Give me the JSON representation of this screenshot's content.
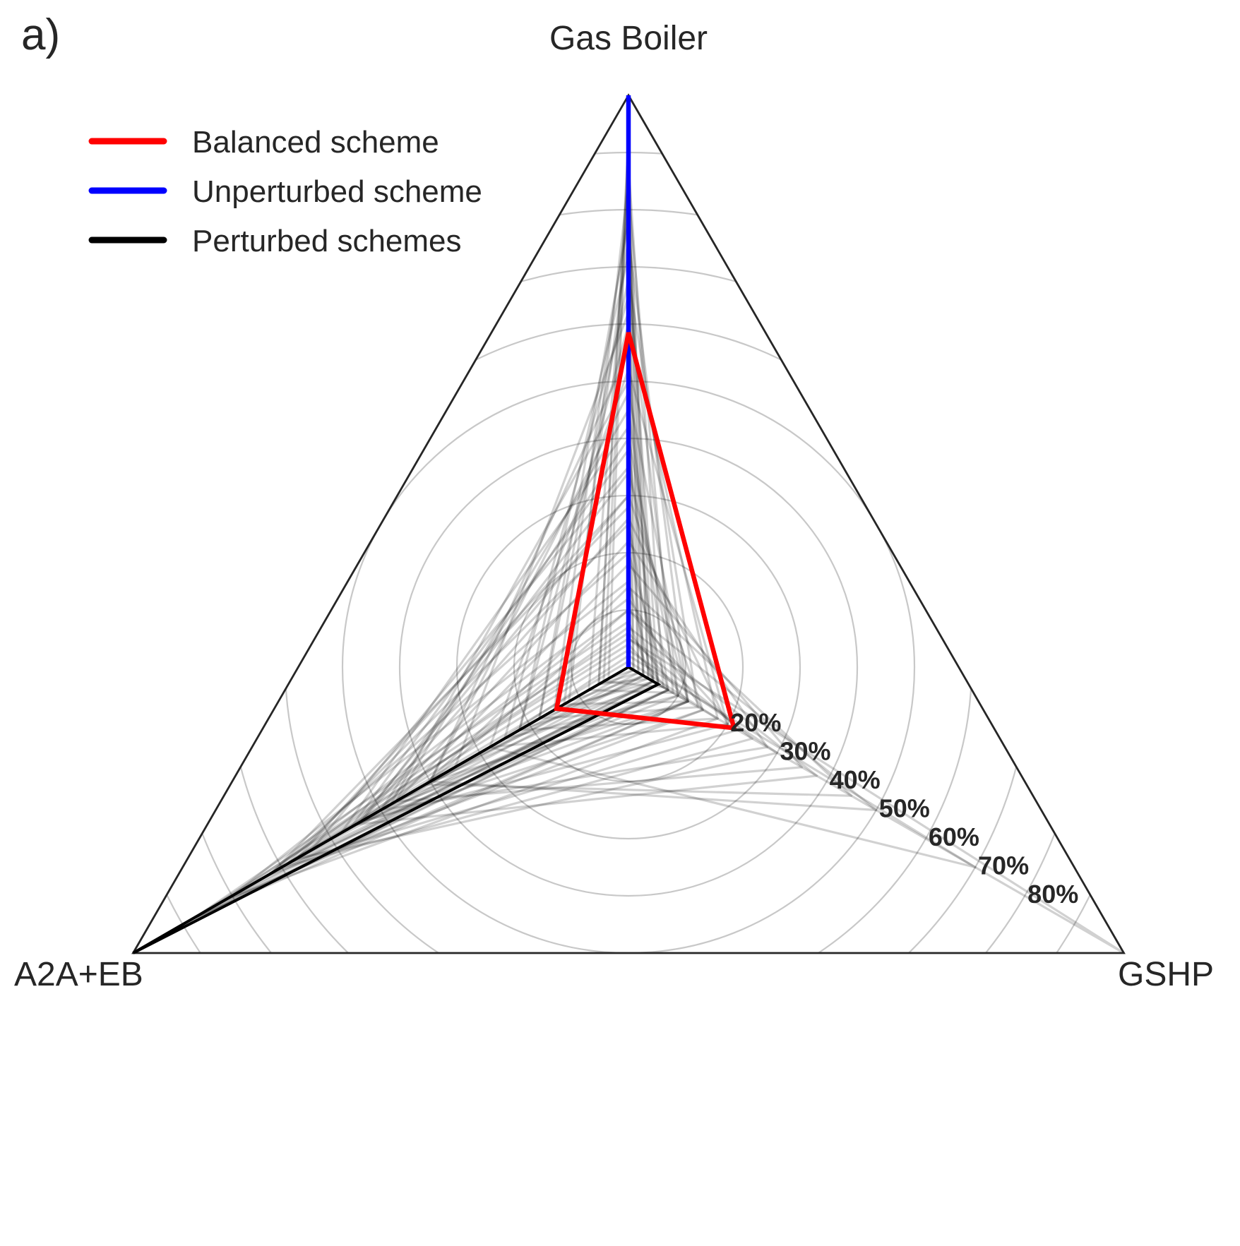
{
  "panel_label": "a)",
  "chart_data": {
    "type": "radar",
    "axes": [
      "Gas Boiler",
      "GSHP",
      "A2A+EB"
    ],
    "radial_max": 100,
    "radial_tick_labels": [
      "20%",
      "30%",
      "40%",
      "50%",
      "60%",
      "70%",
      "80%"
    ],
    "radial_ticks": [
      20,
      30,
      40,
      50,
      60,
      70,
      80
    ],
    "grid_circles": [
      10,
      20,
      30,
      40,
      50,
      60,
      70,
      80,
      90
    ],
    "legend": {
      "placement": "upper-left",
      "entries": [
        {
          "label": "Balanced scheme",
          "color": "#ff0000"
        },
        {
          "label": "Unperturbed scheme",
          "color": "#0000ff"
        },
        {
          "label": "Perturbed schemes",
          "color": "#000000"
        }
      ]
    },
    "series": [
      {
        "name": "Balanced scheme",
        "color": "#ff0000",
        "values": [
          58.5,
          21.3,
          14.5
        ]
      },
      {
        "name": "Unperturbed scheme",
        "color": "#0000ff",
        "values": [
          100,
          0,
          0
        ]
      },
      {
        "name": "Perturbed schemes",
        "color": "#000000",
        "values": [
          0,
          6,
          100
        ]
      },
      {
        "name": "Perturbed schemes",
        "color": "#000000",
        "members": [
          [
            100,
            0,
            0
          ],
          [
            95,
            1,
            4
          ],
          [
            92,
            2,
            6
          ],
          [
            85,
            3,
            12
          ],
          [
            80,
            5,
            15
          ],
          [
            72,
            6,
            22
          ],
          [
            65,
            10,
            25
          ],
          [
            55,
            5,
            40
          ],
          [
            45,
            8,
            47
          ],
          [
            38,
            6,
            56
          ],
          [
            30,
            3,
            67
          ],
          [
            25,
            6,
            69
          ],
          [
            20,
            8,
            72
          ],
          [
            15,
            5,
            80
          ],
          [
            12,
            15,
            73
          ],
          [
            10,
            22,
            68
          ],
          [
            8,
            5,
            87
          ],
          [
            6,
            12,
            82
          ],
          [
            5,
            100,
            0
          ],
          [
            4,
            8,
            88
          ],
          [
            3,
            30,
            67
          ],
          [
            2,
            70,
            28
          ],
          [
            0,
            6,
            94
          ],
          [
            0,
            8,
            92
          ],
          [
            0,
            12,
            88
          ],
          [
            1,
            18,
            81
          ],
          [
            5,
            25,
            70
          ],
          [
            7,
            38,
            55
          ],
          [
            10,
            50,
            40
          ],
          [
            14,
            45,
            41
          ],
          [
            18,
            35,
            47
          ],
          [
            22,
            28,
            50
          ],
          [
            26,
            20,
            54
          ],
          [
            30,
            15,
            55
          ],
          [
            34,
            12,
            54
          ],
          [
            40,
            10,
            50
          ],
          [
            48,
            12,
            40
          ],
          [
            52,
            20,
            28
          ],
          [
            60,
            18,
            22
          ],
          [
            68,
            14,
            18
          ],
          [
            75,
            12,
            13
          ],
          [
            83,
            9,
            8
          ],
          [
            88,
            7,
            5
          ],
          [
            90,
            4,
            6
          ],
          [
            78,
            4,
            18
          ],
          [
            62,
            3,
            35
          ],
          [
            50,
            2,
            48
          ],
          [
            42,
            0,
            58
          ],
          [
            35,
            1,
            64
          ],
          [
            28,
            0,
            72
          ]
        ]
      }
    ]
  }
}
